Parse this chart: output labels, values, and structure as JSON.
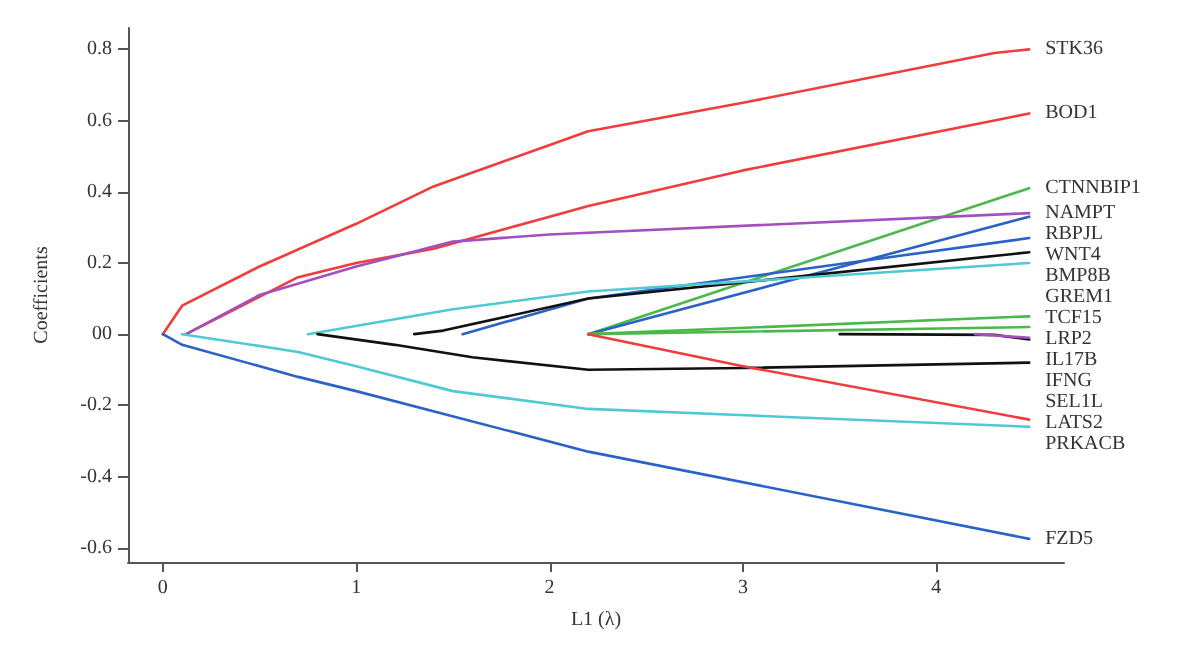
{
  "chart_data": {
    "type": "line",
    "xlabel": "L1 (λ)",
    "ylabel": "Coefficients",
    "xlim": [
      -0.18,
      4.66
    ],
    "ylim": [
      -0.64,
      0.86
    ],
    "xticks": [
      0,
      1,
      2,
      3,
      4
    ],
    "yticks": [
      -0.6,
      -0.4,
      -0.2,
      {
        "value": 0,
        "label": "00"
      },
      0.2,
      0.4,
      0.6,
      0.8
    ],
    "grid": false,
    "legend": false,
    "marker": "none",
    "line_style": "solid",
    "series": [
      {
        "name": "STK36",
        "color": "#f03c3c",
        "x": [
          0,
          0.1,
          0.5,
          1,
          1.4,
          2.2,
          3,
          4.3,
          4.48
        ],
        "values": [
          0,
          0.08,
          0.19,
          0.31,
          0.415,
          0.57,
          0.65,
          0.79,
          0.8
        ]
      },
      {
        "name": "BOD1",
        "color": "#f03c3c",
        "x": [
          0.12,
          0.7,
          1,
          1.4,
          2,
          2.2,
          3,
          4.3,
          4.48
        ],
        "values": [
          0,
          0.16,
          0.2,
          0.24,
          0.33,
          0.36,
          0.46,
          0.6,
          0.62
        ]
      },
      {
        "name": "CTNNBIP1",
        "color": "#4cb84c",
        "x": [
          2.2,
          4.48
        ],
        "values": [
          0,
          0.41
        ]
      },
      {
        "name": "NAMPT",
        "color": "#a34fc0",
        "x": [
          0.12,
          0.5,
          1,
          1.5,
          2,
          2.2,
          4.48
        ],
        "values": [
          0,
          0.11,
          0.19,
          0.26,
          0.28,
          0.285,
          0.34
        ]
      },
      {
        "name": "RBPJL",
        "color": "#2a62c8",
        "x": [
          2.2,
          4.48
        ],
        "values": [
          0,
          0.33
        ]
      },
      {
        "name": "WNT4",
        "color": "#2a62c8",
        "x": [
          1.55,
          2.2,
          4.48
        ],
        "values": [
          0,
          0.1,
          0.27
        ]
      },
      {
        "name": "BMP8B",
        "color": "#111111",
        "x": [
          1.3,
          1.45,
          2.2,
          4.48
        ],
        "values": [
          0,
          0.01,
          0.1,
          0.23
        ]
      },
      {
        "name": "GREM1",
        "color": "#4fc9d2",
        "x": [
          0.75,
          1.5,
          2.2,
          4.48
        ],
        "values": [
          0,
          0.07,
          0.12,
          0.2
        ]
      },
      {
        "name": "TCF15",
        "color": "#4cb84c",
        "x": [
          2.2,
          4.48
        ],
        "values": [
          0,
          0.05
        ]
      },
      {
        "name": "LRP2",
        "color": "#4cb84c",
        "x": [
          2.2,
          4.48
        ],
        "values": [
          0,
          0.02
        ]
      },
      {
        "name": "IFNG",
        "color": "#111111",
        "x": [
          3.5,
          4.3,
          4.48
        ],
        "values": [
          0,
          -0.002,
          -0.015
        ]
      },
      {
        "name": "IL17B",
        "color": "#a34fc0",
        "x": [
          4.2,
          4.48
        ],
        "values": [
          0,
          -0.01
        ]
      },
      {
        "name": "SEL1L",
        "color": "#111111",
        "x": [
          0.8,
          1.2,
          1.6,
          2.2,
          3,
          4.48
        ],
        "values": [
          0,
          -0.03,
          -0.065,
          -0.1,
          -0.095,
          -0.08
        ]
      },
      {
        "name": "LATS2",
        "color": "#f03c3c",
        "x": [
          2.2,
          3,
          4.48
        ],
        "values": [
          0,
          -0.09,
          -0.24
        ]
      },
      {
        "name": "PRKACB",
        "color": "#4fc9d2",
        "x": [
          0.1,
          0.7,
          1,
          1.5,
          2.2,
          4.48
        ],
        "values": [
          0,
          -0.05,
          -0.09,
          -0.16,
          -0.21,
          -0.26
        ]
      },
      {
        "name": "FZD5",
        "color": "#2a62c8",
        "x": [
          0,
          0.1,
          0.7,
          1,
          2.2,
          4.48
        ],
        "values": [
          0,
          -0.03,
          -0.12,
          -0.16,
          -0.33,
          -0.575
        ]
      }
    ]
  }
}
